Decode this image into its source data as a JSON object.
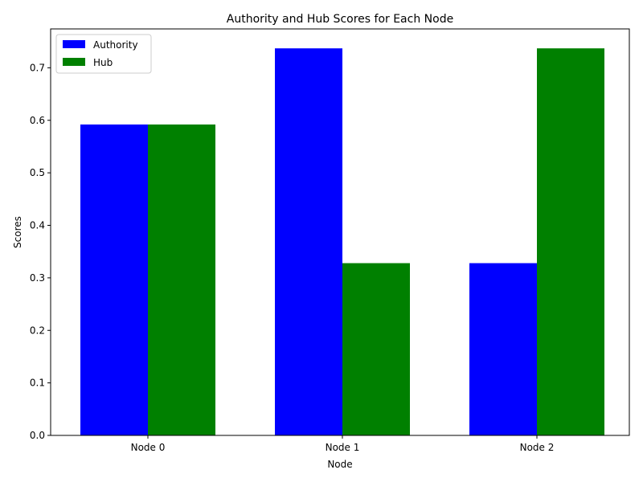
{
  "chart_data": {
    "type": "bar",
    "title": "Authority and Hub Scores for Each Node",
    "xlabel": "Node",
    "ylabel": "Scores",
    "categories": [
      "Node 0",
      "Node 1",
      "Node 2"
    ],
    "series": [
      {
        "name": "Authority",
        "values": [
          0.592,
          0.737,
          0.328
        ],
        "color": "#0000ff"
      },
      {
        "name": "Hub",
        "values": [
          0.592,
          0.328,
          0.737
        ],
        "color": "#008000"
      }
    ],
    "ylim": [
      0,
      0.774
    ],
    "yticks": [
      "0.0",
      "0.1",
      "0.2",
      "0.3",
      "0.4",
      "0.5",
      "0.6",
      "0.7"
    ],
    "grid": false,
    "legend_position": "top-left"
  }
}
